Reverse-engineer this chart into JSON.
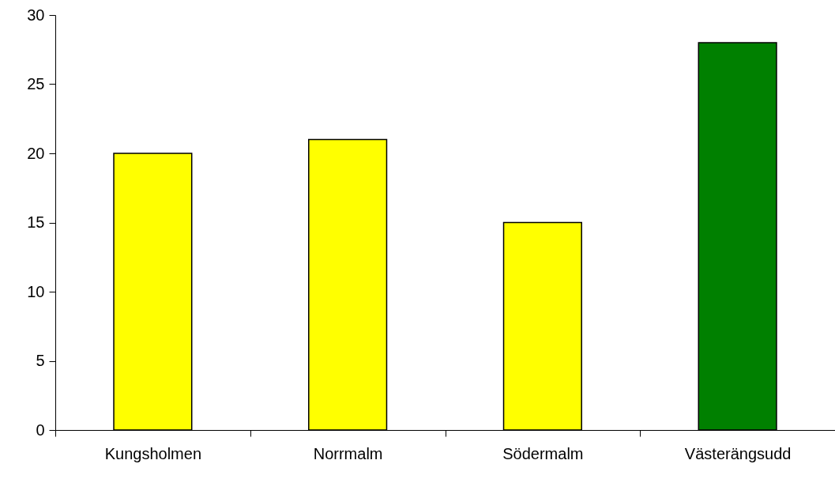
{
  "chart_data": {
    "type": "bar",
    "categories": [
      "Kungsholmen",
      "Norrmalm",
      "Södermalm",
      "Västerängsudd"
    ],
    "values": [
      20,
      21,
      15,
      28
    ],
    "colors": [
      "#ffff00",
      "#ffff00",
      "#ffff00",
      "#008000"
    ],
    "ylim": [
      0,
      30
    ],
    "yticks": [
      0,
      5,
      10,
      15,
      20,
      25,
      30
    ]
  }
}
